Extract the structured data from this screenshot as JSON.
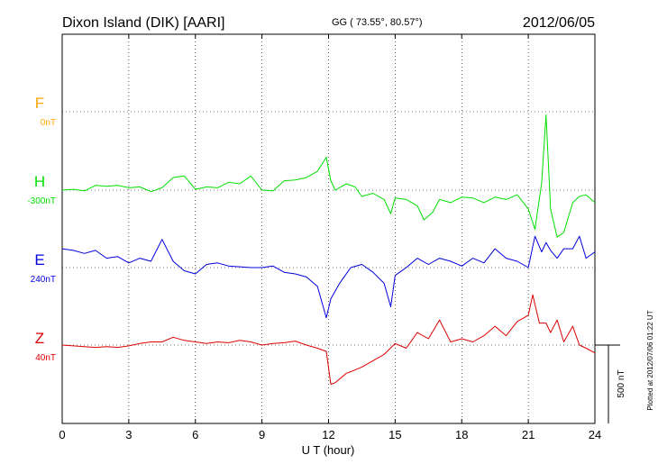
{
  "header": {
    "station": "Dixon Island (DIK)  [AARI]",
    "coords": "GG ( 73.55°,  80.57°)",
    "date": "2012/06/05"
  },
  "side_note": "Plotted at 2012/07/06 01:22 UT",
  "scale_bar_label": "500 nT",
  "colors": {
    "F": "#ffa500",
    "H": "#00e000",
    "E": "#0000dd",
    "Z": "#dd0000",
    "grid": "#000000"
  },
  "chart_data": {
    "type": "line",
    "xlabel": "U T (hour)",
    "xlim": [
      0,
      24
    ],
    "x_ticks": [
      0,
      3,
      6,
      9,
      12,
      15,
      18,
      21,
      24
    ],
    "x_tick_labels": [
      "0",
      "3",
      "6",
      "9",
      "12",
      "15",
      "18",
      "21",
      "24"
    ],
    "grid": true,
    "scale_bar_nT": 500,
    "series": [
      {
        "name": "F",
        "offset_label": "0nT",
        "color": "#ffa500",
        "x": [],
        "y": []
      },
      {
        "name": "H",
        "offset_label": "-300nT",
        "color": "#00e000",
        "x": [
          0,
          0.5,
          1,
          1.5,
          2,
          2.5,
          3,
          3.5,
          4,
          4.5,
          5,
          5.5,
          6,
          6.5,
          7,
          7.5,
          8,
          8.5,
          9,
          9.5,
          10,
          10.5,
          11,
          11.5,
          11.9,
          12.1,
          12.3,
          12.8,
          13.2,
          13.5,
          14,
          14.5,
          14.8,
          15,
          15.5,
          16,
          16.3,
          16.7,
          17,
          17.5,
          18,
          18.5,
          19,
          19.5,
          20,
          20.5,
          21,
          21.3,
          21.6,
          21.8,
          22,
          22.3,
          22.6,
          23,
          23.3,
          23.6,
          24
        ],
        "y": [
          0,
          5,
          -5,
          30,
          25,
          30,
          15,
          20,
          -10,
          15,
          80,
          90,
          5,
          20,
          15,
          50,
          40,
          90,
          0,
          -5,
          60,
          65,
          80,
          120,
          210,
          60,
          0,
          40,
          20,
          -40,
          -20,
          -60,
          -150,
          -50,
          -60,
          -100,
          -190,
          -140,
          -60,
          -80,
          -45,
          -50,
          -80,
          -45,
          -60,
          -30,
          -120,
          -250,
          45,
          480,
          -120,
          -300,
          -270,
          -80,
          -40,
          -30,
          -80
        ]
      },
      {
        "name": "E",
        "offset_label": "240nT",
        "color": "#0000dd",
        "x": [
          0,
          0.5,
          1,
          1.5,
          2,
          2.5,
          3,
          3.5,
          4,
          4.5,
          5,
          5.5,
          6,
          6.5,
          7,
          7.5,
          8,
          8.5,
          9,
          9.5,
          10,
          10.5,
          11,
          11.5,
          11.9,
          12.1,
          12.5,
          13,
          13.5,
          14,
          14.5,
          14.8,
          15,
          15.5,
          16,
          16.5,
          17,
          17.5,
          18,
          18.5,
          19,
          19.5,
          20,
          20.5,
          21,
          21.3,
          21.6,
          21.8,
          22,
          22.3,
          22.6,
          23,
          23.3,
          23.6,
          24
        ],
        "y": [
          120,
          110,
          90,
          110,
          60,
          70,
          30,
          60,
          40,
          180,
          40,
          -20,
          -40,
          20,
          30,
          10,
          5,
          0,
          0,
          10,
          -30,
          -40,
          -60,
          -120,
          -320,
          -200,
          -100,
          0,
          20,
          -30,
          -100,
          -250,
          -50,
          0,
          60,
          20,
          60,
          40,
          10,
          60,
          30,
          120,
          60,
          40,
          0,
          200,
          100,
          160,
          110,
          60,
          120,
          120,
          200,
          60,
          100
        ]
      },
      {
        "name": "Z",
        "offset_label": "40nT",
        "color": "#dd0000",
        "x": [
          0,
          0.5,
          1,
          1.5,
          2,
          2.5,
          3,
          3.5,
          4,
          4.5,
          5,
          5.5,
          6,
          6.5,
          7,
          7.5,
          8,
          8.5,
          9,
          9.5,
          10,
          10.5,
          11,
          11.5,
          11.9,
          12.1,
          12.3,
          12.8,
          13,
          13.5,
          14,
          14.5,
          15,
          15.5,
          16,
          16.5,
          17,
          17.5,
          18,
          18.5,
          19,
          19.5,
          20,
          20.5,
          21,
          21.2,
          21.5,
          21.8,
          22,
          22.3,
          22.6,
          23,
          23.3,
          23.6,
          24
        ],
        "y": [
          0,
          -5,
          -10,
          -15,
          -10,
          -15,
          -5,
          10,
          20,
          20,
          50,
          30,
          20,
          10,
          20,
          15,
          30,
          20,
          0,
          10,
          15,
          25,
          0,
          -20,
          -40,
          -250,
          -240,
          -180,
          -170,
          -140,
          -100,
          -60,
          10,
          -20,
          80,
          40,
          160,
          20,
          40,
          20,
          60,
          120,
          60,
          150,
          190,
          320,
          140,
          140,
          80,
          160,
          20,
          120,
          0,
          -20,
          -50
        ]
      }
    ]
  }
}
